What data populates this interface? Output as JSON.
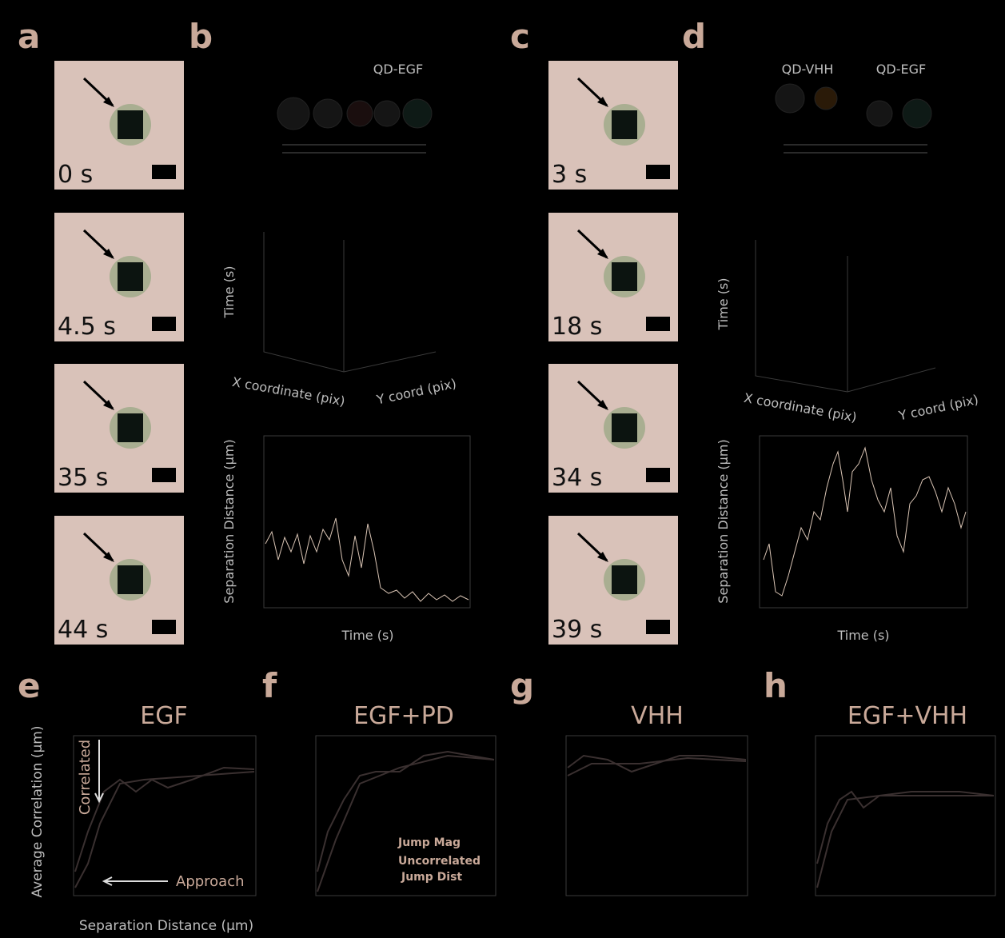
{
  "panels": {
    "a": {
      "label": "a",
      "frames": [
        "0 s",
        "4.5 s",
        "35 s",
        "44 s"
      ]
    },
    "b": {
      "label": "b",
      "probe": "QD-EGF",
      "time_axis": "Time (s)",
      "x_axis": "X coordinate (pix)",
      "y_axis": "Y coord (pix)",
      "plot_ylabel": "Separation Distance (µm)",
      "plot_xlabel": "Time (s)"
    },
    "c": {
      "label": "c",
      "frames": [
        "3 s",
        "18 s",
        "34 s",
        "39 s"
      ]
    },
    "d": {
      "label": "d",
      "probes": [
        "QD-VHH",
        "QD-EGF"
      ],
      "time_axis": "Time (s)",
      "x_axis": "X coordinate (pix)",
      "y_axis": "Y coord (pix)",
      "plot_ylabel": "Separation Distance (µm)",
      "plot_xlabel": "Time (s)"
    },
    "e": {
      "label": "e",
      "title": "EGF",
      "ylabel": "Average Correlation (µm)",
      "xlabel": "Separation Distance (µm)",
      "annotations": [
        "Correlated",
        "Approach"
      ]
    },
    "f": {
      "label": "f",
      "title": "EGF+PD",
      "legend": [
        "Jump Mag",
        "Uncorrelated",
        "Jump Dist"
      ]
    },
    "g": {
      "label": "g",
      "title": "VHH"
    },
    "h": {
      "label": "h",
      "title": "EGF+VHH"
    }
  }
}
